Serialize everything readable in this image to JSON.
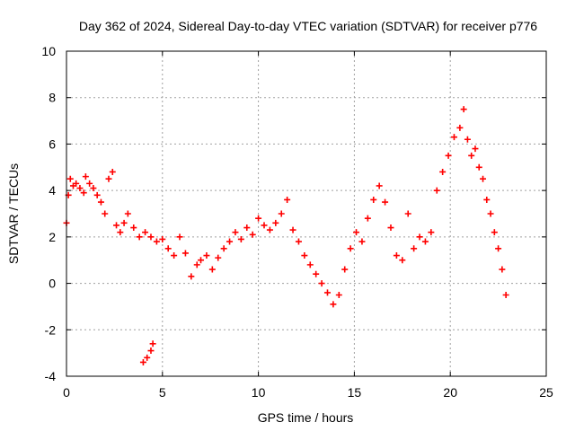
{
  "chart_data": {
    "type": "scatter",
    "title": "Day 362 of 2024, Sidereal Day-to-day VTEC variation (SDTVAR) for receiver p776",
    "xlabel": "GPS time / hours",
    "ylabel": "SDTVAR / TECUs",
    "xlim": [
      0,
      25
    ],
    "ylim": [
      -4,
      10
    ],
    "x_ticks": [
      0,
      5,
      10,
      15,
      20,
      25
    ],
    "y_ticks": [
      -4,
      -2,
      0,
      2,
      4,
      6,
      8,
      10
    ],
    "grid": true,
    "marker": "+",
    "color": "#ff0000",
    "series": [
      {
        "name": "SDTVAR",
        "x": [
          0.0,
          0.1,
          0.2,
          0.35,
          0.5,
          0.7,
          0.9,
          1.0,
          1.2,
          1.4,
          1.6,
          1.8,
          2.0,
          2.2,
          2.4,
          2.6,
          2.8,
          3.0,
          3.2,
          3.5,
          3.8,
          4.1,
          4.4,
          4.7,
          5.0,
          5.3,
          5.6,
          5.9,
          6.2,
          6.5,
          6.8,
          7.0,
          7.3,
          7.6,
          7.9,
          8.2,
          8.5,
          8.8,
          9.1,
          9.4,
          9.7,
          10.0,
          10.3,
          10.6,
          10.9,
          11.2,
          11.5,
          11.8,
          12.1,
          12.4,
          12.7,
          13.0,
          13.3,
          13.6,
          13.9,
          14.2,
          14.5,
          14.8,
          15.1,
          15.4,
          15.7,
          16.0,
          16.3,
          16.6,
          16.9,
          17.2,
          17.5,
          17.8,
          18.1,
          18.4,
          18.7,
          19.0,
          19.3,
          19.6,
          19.9,
          20.2,
          20.5,
          20.7,
          20.9,
          21.1,
          21.3,
          21.5,
          21.7,
          21.9,
          22.1,
          22.3,
          22.5,
          22.7,
          22.9,
          4.0,
          4.2,
          4.4,
          4.5
        ],
        "y": [
          2.6,
          3.8,
          4.5,
          4.2,
          4.3,
          4.1,
          3.9,
          4.6,
          4.3,
          4.1,
          3.8,
          3.5,
          3.0,
          4.5,
          4.8,
          2.5,
          2.2,
          2.6,
          3.0,
          2.4,
          2.0,
          2.2,
          2.0,
          1.8,
          1.9,
          1.5,
          1.2,
          2.0,
          1.3,
          0.3,
          0.8,
          1.0,
          1.2,
          0.6,
          1.1,
          1.5,
          1.8,
          2.2,
          1.9,
          2.4,
          2.1,
          2.8,
          2.5,
          2.3,
          2.6,
          3.0,
          3.6,
          2.3,
          1.8,
          1.2,
          0.8,
          0.4,
          0.0,
          -0.4,
          -0.9,
          -0.5,
          0.6,
          1.5,
          2.2,
          1.8,
          2.8,
          3.6,
          4.2,
          3.5,
          2.4,
          1.2,
          1.0,
          3.0,
          1.5,
          2.0,
          1.8,
          2.2,
          4.0,
          4.8,
          5.5,
          6.3,
          6.7,
          7.5,
          6.2,
          5.5,
          5.8,
          5.0,
          4.5,
          3.6,
          3.0,
          2.2,
          1.5,
          0.6,
          -0.5,
          -3.4,
          -3.2,
          -2.9,
          -2.6
        ]
      }
    ]
  }
}
